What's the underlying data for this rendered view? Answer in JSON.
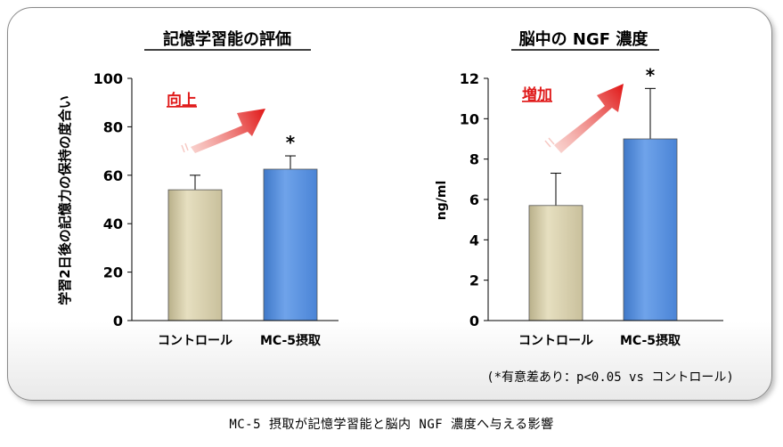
{
  "chart_data": [
    {
      "type": "bar",
      "title": "記憶学習能の評価",
      "ylabel": "学習2日後の記憶力の保持の度合い",
      "categories": [
        "コントロール",
        "MC-5摂取"
      ],
      "values": [
        54,
        62.5
      ],
      "errors": [
        6,
        5.5
      ],
      "ylim": [
        0,
        100
      ],
      "yticks": [
        "0",
        "20",
        "40",
        "60",
        "80",
        "100"
      ],
      "significance": [
        "",
        "*"
      ],
      "annotation": "向上",
      "colors": [
        "#d6ceab",
        "#5b93dd"
      ]
    },
    {
      "type": "bar",
      "title": "脳中の NGF 濃度",
      "ylabel": "ng/ml",
      "categories": [
        "コントロール",
        "MC-5摂取"
      ],
      "values": [
        5.7,
        9.0
      ],
      "errors": [
        1.6,
        2.5
      ],
      "ylim": [
        0,
        12
      ],
      "yticks": [
        "0",
        "2",
        "4",
        "6",
        "8",
        "10",
        "12"
      ],
      "significance": [
        "",
        "*"
      ],
      "annotation": "増加",
      "colors": [
        "#d6ceab",
        "#5b93dd"
      ]
    }
  ],
  "note": "(*有意差あり：p<0.05 vs コントロール)",
  "caption": "MC-5 摂取が記憶学習能と脳内 NGF 濃度へ与える影響"
}
